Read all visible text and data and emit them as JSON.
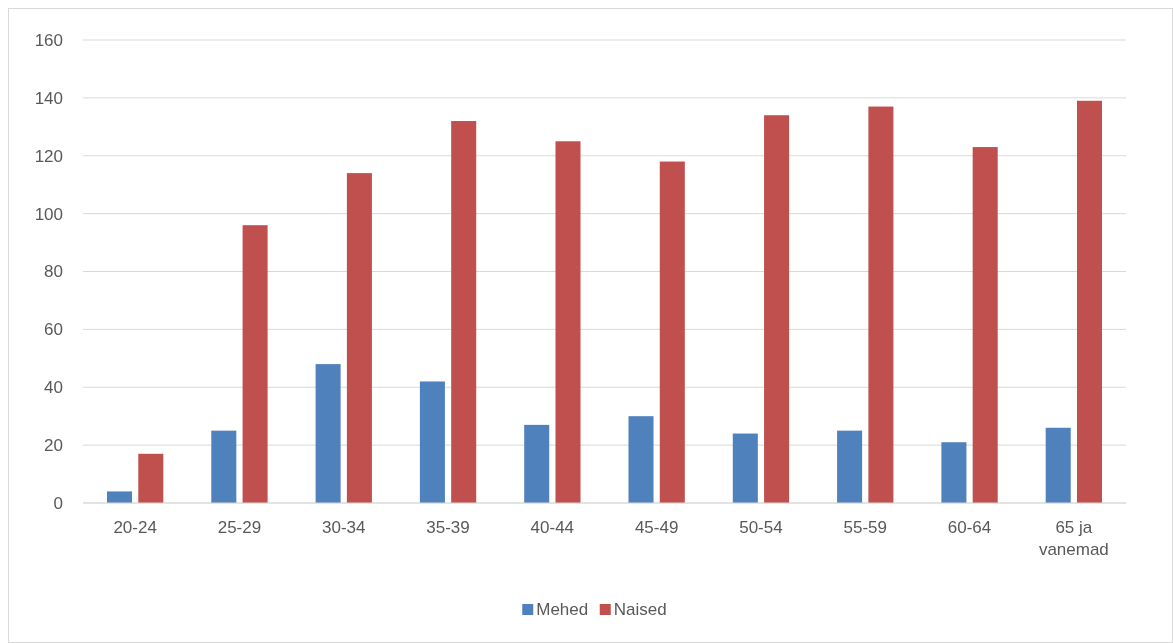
{
  "chart_data": {
    "type": "bar",
    "categories": [
      "20-24",
      "25-29",
      "30-34",
      "35-39",
      "40-44",
      "45-49",
      "50-54",
      "55-59",
      "60-64",
      "65 ja vanemad"
    ],
    "series": [
      {
        "name": "Mehed",
        "color": "#4f81bd",
        "values": [
          4,
          25,
          48,
          42,
          27,
          30,
          24,
          25,
          21,
          26
        ]
      },
      {
        "name": "Naised",
        "color": "#c0504d",
        "values": [
          17,
          96,
          114,
          132,
          125,
          118,
          134,
          137,
          123,
          139
        ]
      }
    ],
    "ylim": [
      0,
      160
    ],
    "yticks": [
      0,
      20,
      40,
      60,
      80,
      100,
      120,
      140,
      160
    ],
    "grid": "y",
    "legend": "bottom"
  }
}
